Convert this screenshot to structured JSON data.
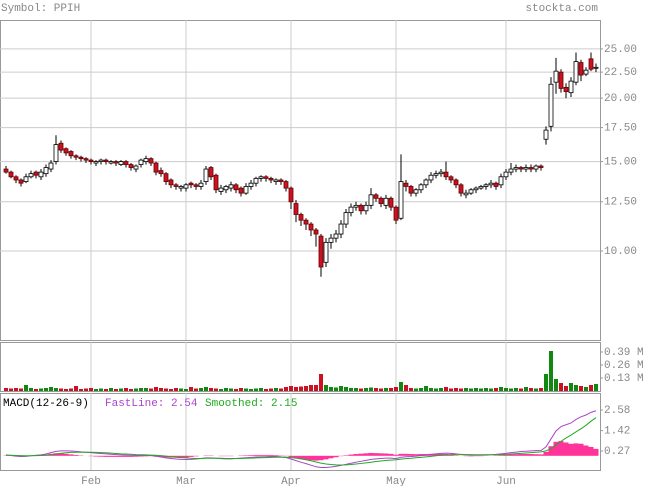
{
  "chart_data": [
    {
      "type": "candlestick",
      "title": "Symbol: PPIH",
      "source": "stockta.com",
      "open": [
        14.5,
        14.3,
        14.0,
        13.8,
        13.7,
        14.0,
        14.3,
        14.0,
        14.2,
        14.5,
        15.0,
        16.3,
        15.9,
        15.7,
        15.4,
        15.3,
        15.2,
        15.1,
        14.9,
        15.0,
        15.1,
        14.9,
        15.0,
        14.8,
        15.0,
        14.8,
        14.5,
        14.8,
        15.0,
        15.2,
        14.9,
        14.4,
        14.2,
        13.8,
        13.5,
        13.3,
        13.3,
        13.6,
        13.5,
        13.4,
        13.7,
        14.6,
        14.1,
        13.1,
        13.2,
        13.3,
        13.5,
        13.3,
        13.0,
        13.4,
        13.6,
        13.9,
        14.0,
        13.9,
        13.7,
        13.8,
        13.7,
        13.3,
        12.4,
        11.8,
        11.5,
        11.3,
        11.0,
        10.7,
        9.5,
        10.4,
        10.6,
        10.8,
        11.3,
        11.9,
        12.2,
        12.3,
        12.0,
        12.3,
        12.9,
        12.7,
        12.3,
        12.7,
        12.2,
        11.6,
        13.6,
        13.4,
        13.0,
        13.2,
        13.5,
        13.8,
        14.1,
        14.2,
        14.3,
        14.0,
        13.8,
        13.5,
        12.9,
        13.0,
        13.2,
        13.3,
        13.4,
        13.5,
        13.6,
        13.5,
        14.0,
        14.3,
        14.5,
        14.6,
        14.5,
        14.6,
        14.5,
        14.7,
        16.6,
        17.6,
        21.5,
        22.5,
        21.0,
        20.5,
        21.5,
        23.5,
        22.3,
        23.9,
        22.9
      ],
      "high": [
        14.7,
        14.4,
        14.1,
        13.9,
        14.2,
        14.4,
        14.4,
        14.5,
        14.8,
        15.1,
        16.9,
        16.5,
        16.0,
        15.8,
        15.5,
        15.4,
        15.3,
        15.2,
        15.1,
        15.2,
        15.2,
        15.1,
        15.1,
        15.1,
        15.1,
        14.9,
        14.8,
        15.2,
        15.4,
        15.3,
        15.0,
        14.6,
        14.3,
        13.9,
        13.6,
        13.5,
        13.6,
        13.7,
        13.6,
        13.8,
        14.7,
        14.7,
        14.2,
        13.5,
        13.5,
        13.7,
        13.6,
        13.4,
        13.6,
        13.8,
        14.0,
        14.1,
        14.1,
        14.0,
        13.9,
        13.9,
        13.8,
        13.4,
        12.6,
        11.9,
        11.6,
        11.4,
        11.1,
        10.8,
        10.6,
        10.8,
        11.0,
        11.5,
        12.1,
        12.4,
        12.5,
        12.4,
        12.5,
        13.3,
        13.0,
        12.8,
        12.9,
        12.8,
        12.3,
        15.5,
        13.8,
        13.5,
        13.3,
        13.6,
        13.9,
        14.3,
        14.4,
        14.5,
        15.0,
        14.1,
        13.9,
        13.6,
        13.2,
        13.3,
        13.4,
        13.5,
        13.6,
        13.8,
        13.7,
        14.2,
        14.5,
        14.9,
        14.8,
        14.7,
        14.8,
        14.8,
        14.8,
        14.8,
        17.6,
        22.0,
        24.0,
        22.8,
        21.4,
        22.0,
        24.6,
        23.8,
        23.0,
        24.6,
        23.4
      ],
      "low": [
        14.2,
        13.9,
        13.6,
        13.4,
        13.6,
        13.9,
        13.9,
        13.8,
        14.0,
        14.3,
        14.8,
        15.6,
        15.4,
        15.2,
        15.1,
        15.0,
        14.9,
        14.8,
        14.7,
        14.8,
        14.8,
        14.8,
        14.7,
        14.7,
        14.6,
        14.4,
        14.3,
        14.6,
        14.8,
        14.7,
        14.1,
        14.0,
        13.5,
        13.3,
        13.2,
        13.1,
        13.1,
        13.3,
        13.2,
        13.2,
        13.5,
        13.8,
        13.0,
        12.9,
        13.0,
        13.1,
        13.0,
        12.8,
        12.9,
        13.2,
        13.4,
        13.7,
        13.7,
        13.6,
        13.5,
        13.5,
        13.1,
        12.1,
        11.4,
        11.2,
        11.0,
        10.7,
        10.2,
        8.9,
        9.3,
        10.1,
        10.4,
        10.6,
        11.1,
        11.7,
        12.0,
        11.8,
        11.8,
        12.1,
        12.5,
        12.2,
        12.1,
        12.0,
        11.3,
        11.5,
        13.1,
        12.8,
        12.8,
        13.0,
        13.3,
        13.6,
        13.9,
        14.0,
        13.8,
        13.6,
        13.3,
        12.8,
        12.7,
        12.9,
        13.0,
        13.2,
        13.2,
        13.3,
        13.2,
        13.3,
        13.8,
        14.1,
        14.3,
        14.3,
        14.3,
        14.3,
        14.3,
        14.4,
        16.2,
        17.2,
        20.4,
        20.5,
        20.0,
        20.1,
        21.2,
        21.6,
        22.1,
        22.6,
        22.5
      ],
      "close": [
        14.3,
        14.0,
        13.8,
        13.6,
        14.0,
        14.2,
        14.1,
        14.3,
        14.6,
        14.9,
        16.2,
        15.8,
        15.6,
        15.4,
        15.3,
        15.2,
        15.1,
        15.0,
        15.0,
        15.1,
        15.0,
        15.0,
        14.9,
        15.0,
        14.8,
        14.6,
        14.7,
        15.1,
        15.2,
        14.9,
        14.3,
        14.2,
        13.7,
        13.5,
        13.4,
        13.4,
        13.5,
        13.5,
        13.4,
        13.6,
        14.5,
        14.0,
        13.2,
        13.3,
        13.4,
        13.5,
        13.2,
        13.0,
        13.4,
        13.6,
        13.9,
        14.0,
        13.9,
        13.8,
        13.8,
        13.7,
        13.3,
        12.5,
        11.8,
        11.5,
        11.3,
        11.0,
        10.8,
        9.3,
        10.4,
        10.6,
        10.8,
        11.3,
        11.9,
        12.2,
        12.3,
        12.0,
        12.3,
        12.9,
        12.7,
        12.4,
        12.7,
        12.2,
        11.5,
        13.7,
        13.4,
        13.0,
        13.2,
        13.5,
        13.8,
        14.1,
        14.2,
        14.3,
        14.0,
        13.8,
        13.5,
        13.0,
        13.0,
        13.2,
        13.3,
        13.4,
        13.5,
        13.6,
        13.4,
        14.0,
        14.3,
        14.5,
        14.6,
        14.5,
        14.6,
        14.5,
        14.7,
        14.6,
        17.3,
        21.3,
        22.6,
        20.9,
        20.6,
        21.6,
        23.6,
        22.2,
        22.7,
        22.8,
        23.0
      ],
      "up_color": "#ffffff",
      "down_color": "#cc1122",
      "xlim": [
        -1.2,
        118.8
      ],
      "xticks": [
        {
          "value": 17,
          "label": "Feb"
        },
        {
          "value": 36,
          "label": "Mar"
        },
        {
          "value": 57,
          "label": "Apr"
        },
        {
          "value": 78,
          "label": "May"
        },
        {
          "value": 100,
          "label": "Jun"
        }
      ],
      "ylim": [
        6.68,
        28.5
      ],
      "log_scale": true,
      "grid": true,
      "yticks": [
        {
          "value": 10,
          "label": "10.00"
        },
        {
          "value": 12.5,
          "label": "12.50"
        },
        {
          "value": 15,
          "label": "15.00"
        },
        {
          "value": 17.5,
          "label": "17.50"
        },
        {
          "value": 20,
          "label": "20.00"
        },
        {
          "value": 22.5,
          "label": "22.50"
        },
        {
          "value": 25,
          "label": "25.00"
        }
      ]
    },
    {
      "type": "bar",
      "values": [
        30000,
        25000,
        30000,
        25000,
        60000,
        30000,
        20000,
        25000,
        30000,
        40000,
        30000,
        25000,
        20000,
        25000,
        50000,
        20000,
        25000,
        30000,
        20000,
        25000,
        20000,
        30000,
        20000,
        25000,
        30000,
        20000,
        25000,
        30000,
        30000,
        25000,
        40000,
        30000,
        25000,
        20000,
        30000,
        25000,
        20000,
        40000,
        25000,
        30000,
        40000,
        30000,
        25000,
        20000,
        30000,
        25000,
        20000,
        30000,
        25000,
        20000,
        25000,
        30000,
        20000,
        25000,
        30000,
        25000,
        40000,
        50000,
        40000,
        45000,
        50000,
        60000,
        60000,
        170000,
        60000,
        40000,
        35000,
        50000,
        40000,
        30000,
        30000,
        25000,
        30000,
        35000,
        30000,
        25000,
        30000,
        30000,
        40000,
        90000,
        60000,
        30000,
        25000,
        30000,
        50000,
        30000,
        25000,
        30000,
        40000,
        25000,
        30000,
        25000,
        30000,
        25000,
        30000,
        25000,
        30000,
        25000,
        30000,
        40000,
        30000,
        25000,
        30000,
        25000,
        40000,
        30000,
        25000,
        30000,
        170000,
        400000,
        120000,
        80000,
        50000,
        80000,
        60000,
        50000,
        40000,
        60000,
        70000
      ],
      "up_color": "#118811",
      "down_color": "#cc1122",
      "ylim": [
        0,
        490000
      ],
      "yticks": [
        {
          "value": 130000,
          "label": "0.13 M"
        },
        {
          "value": 260000,
          "label": "0.26 M"
        },
        {
          "value": 390000,
          "label": "0.39 M"
        }
      ]
    },
    {
      "type": "line",
      "title": "MACD(12-26-9)",
      "series": [
        {
          "name": "FastLine: 2.54",
          "color": "#aa44cc",
          "values": [
            0.05,
            0.02,
            -0.02,
            -0.04,
            -0.03,
            0,
            0.03,
            0.05,
            0.1,
            0.18,
            0.25,
            0.28,
            0.28,
            0.27,
            0.25,
            0.22,
            0.2,
            0.18,
            0.15,
            0.13,
            0.11,
            0.09,
            0.07,
            0.05,
            0.04,
            0.03,
            0.02,
            0.02,
            0.02,
            0.02,
            -0.02,
            -0.07,
            -0.12,
            -0.15,
            -0.18,
            -0.2,
            -0.21,
            -0.2,
            -0.18,
            -0.15,
            -0.12,
            -0.12,
            -0.14,
            -0.16,
            -0.17,
            -0.17,
            -0.15,
            -0.13,
            -0.11,
            -0.09,
            -0.07,
            -0.06,
            -0.05,
            -0.04,
            -0.04,
            -0.06,
            -0.1,
            -0.18,
            -0.27,
            -0.36,
            -0.44,
            -0.53,
            -0.62,
            -0.66,
            -0.66,
            -0.63,
            -0.59,
            -0.54,
            -0.48,
            -0.42,
            -0.36,
            -0.31,
            -0.26,
            -0.2,
            -0.17,
            -0.15,
            -0.13,
            -0.13,
            -0.16,
            -0.08,
            -0.05,
            -0.04,
            -0.02,
            0.01,
            0.04,
            0.08,
            0.11,
            0.14,
            0.15,
            0.14,
            0.11,
            0.07,
            0.05,
            0.04,
            0.04,
            0.04,
            0.05,
            0.06,
            0.08,
            0.11,
            0.14,
            0.18,
            0.21,
            0.24,
            0.26,
            0.28,
            0.29,
            0.3,
            0.5,
            0.95,
            1.4,
            1.65,
            1.75,
            1.85,
            2.05,
            2.2,
            2.3,
            2.45,
            2.54
          ]
        },
        {
          "name": "Smoothed: 2.15",
          "color": "#22aa22",
          "values": [
            0.03,
            0.03,
            0.02,
            0.01,
            0,
            0,
            0.01,
            0.02,
            0.04,
            0.07,
            0.11,
            0.14,
            0.17,
            0.19,
            0.2,
            0.2,
            0.2,
            0.2,
            0.19,
            0.18,
            0.17,
            0.15,
            0.13,
            0.11,
            0.1,
            0.09,
            0.07,
            0.06,
            0.05,
            0.04,
            0.03,
            0.01,
            -0.02,
            -0.05,
            -0.08,
            -0.1,
            -0.12,
            -0.14,
            -0.15,
            -0.15,
            -0.14,
            -0.14,
            -0.14,
            -0.14,
            -0.15,
            -0.15,
            -0.15,
            -0.15,
            -0.14,
            -0.13,
            -0.12,
            -0.11,
            -0.1,
            -0.09,
            -0.08,
            -0.08,
            -0.08,
            -0.1,
            -0.13,
            -0.17,
            -0.22,
            -0.28,
            -0.35,
            -0.41,
            -0.46,
            -0.49,
            -0.51,
            -0.52,
            -0.51,
            -0.49,
            -0.46,
            -0.43,
            -0.4,
            -0.36,
            -0.32,
            -0.29,
            -0.26,
            -0.24,
            -0.22,
            -0.19,
            -0.16,
            -0.14,
            -0.11,
            -0.09,
            -0.06,
            -0.03,
            0,
            0.03,
            0.05,
            0.07,
            0.08,
            0.08,
            0.07,
            0.07,
            0.06,
            0.06,
            0.06,
            0.06,
            0.06,
            0.07,
            0.08,
            0.1,
            0.12,
            0.14,
            0.16,
            0.18,
            0.2,
            0.22,
            0.28,
            0.41,
            0.61,
            0.82,
            1.0,
            1.17,
            1.35,
            1.52,
            1.72,
            1.95,
            2.15
          ]
        }
      ],
      "histogram": {
        "color": "#ff3399",
        "values": [
          0.02,
          -0.01,
          -0.04,
          -0.05,
          -0.03,
          0,
          0.02,
          0.03,
          0.06,
          0.11,
          0.14,
          0.14,
          0.11,
          0.08,
          0.05,
          0.02,
          0,
          -0.02,
          -0.04,
          -0.05,
          -0.06,
          -0.06,
          -0.06,
          -0.06,
          -0.06,
          -0.06,
          -0.05,
          -0.04,
          -0.03,
          -0.02,
          -0.05,
          -0.08,
          -0.1,
          -0.1,
          -0.1,
          -0.1,
          -0.09,
          -0.06,
          -0.03,
          0,
          0.02,
          0.02,
          0,
          -0.02,
          -0.02,
          -0.02,
          0,
          0.02,
          0.03,
          0.04,
          0.05,
          0.05,
          0.05,
          0.05,
          0.04,
          0.02,
          -0.02,
          -0.08,
          -0.14,
          -0.19,
          -0.22,
          -0.25,
          -0.27,
          -0.25,
          -0.2,
          -0.14,
          -0.08,
          -0.02,
          0.03,
          0.07,
          0.1,
          0.12,
          0.14,
          0.16,
          0.15,
          0.14,
          0.13,
          0.11,
          0.06,
          0.11,
          0.11,
          0.1,
          0.09,
          0.1,
          0.1,
          0.11,
          0.11,
          0.11,
          0.1,
          0.07,
          0.03,
          -0.01,
          -0.02,
          -0.03,
          -0.02,
          -0.02,
          -0.01,
          0,
          0.02,
          0.04,
          0.06,
          0.08,
          0.09,
          0.1,
          0.1,
          0.1,
          0.09,
          0.08,
          0.22,
          0.54,
          0.79,
          0.83,
          0.75,
          0.68,
          0.7,
          0.68,
          0.58,
          0.5,
          0.39
        ]
      },
      "ylim": [
        -0.8,
        3.54
      ],
      "yticks": [
        0.27,
        1.42,
        2.58
      ]
    }
  ]
}
